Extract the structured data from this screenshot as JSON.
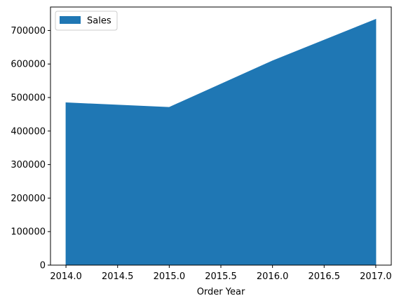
{
  "chart_data": {
    "type": "area",
    "x": [
      2014.0,
      2015.0,
      2016.0,
      2017.0
    ],
    "series": [
      {
        "name": "Sales",
        "values": [
          484247,
          470533,
          609206,
          733215
        ],
        "color": "#1f77b4"
      }
    ],
    "xlabel": "Order Year",
    "ylabel": "",
    "xlim": [
      2013.85,
      2017.15
    ],
    "ylim": [
      0,
      770000
    ],
    "x_ticks": [
      2014.0,
      2014.5,
      2015.0,
      2015.5,
      2016.0,
      2016.5,
      2017.0
    ],
    "x_tick_labels": [
      "2014.0",
      "2014.5",
      "2015.0",
      "2015.5",
      "2016.0",
      "2016.5",
      "2017.0"
    ],
    "y_ticks": [
      0,
      100000,
      200000,
      300000,
      400000,
      500000,
      600000,
      700000
    ],
    "y_tick_labels": [
      "0",
      "100000",
      "200000",
      "300000",
      "400000",
      "500000",
      "600000",
      "700000"
    ],
    "grid": false,
    "legend": {
      "position": "top-left",
      "entries": [
        "Sales"
      ]
    }
  }
}
